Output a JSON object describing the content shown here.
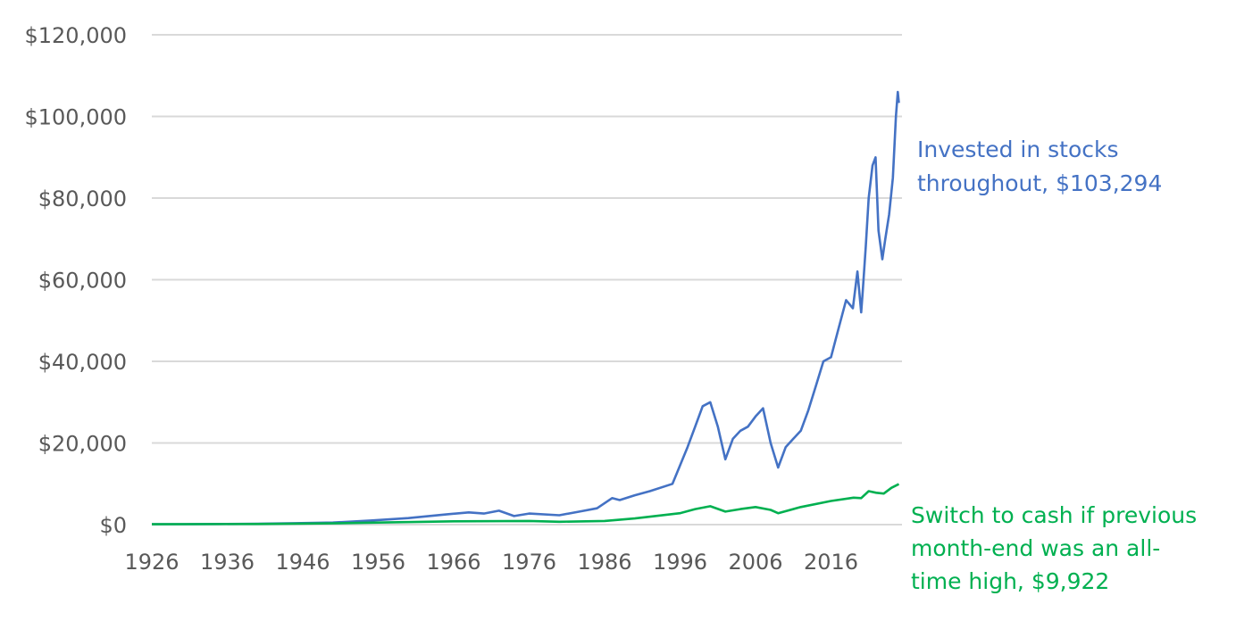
{
  "chart_data": {
    "type": "line",
    "title": "",
    "xlabel": "",
    "ylabel": "",
    "xlim": [
      1926,
      2025
    ],
    "ylim": [
      0,
      120000
    ],
    "y_ticks": [
      0,
      20000,
      40000,
      60000,
      80000,
      100000,
      120000
    ],
    "y_tick_labels": [
      "$0",
      "$20,000",
      "$40,000",
      "$60,000",
      "$80,000",
      "$100,000",
      "$120,000"
    ],
    "x_ticks": [
      1926,
      1936,
      1946,
      1956,
      1966,
      1976,
      1986,
      1996,
      2006,
      2016
    ],
    "x_tick_labels": [
      "1926",
      "1936",
      "1946",
      "1956",
      "1966",
      "1976",
      "1986",
      "1996",
      "2006",
      "2016"
    ],
    "grid": "horizontal",
    "legend": "none",
    "series": [
      {
        "key": "stocks",
        "color": "#4472C4",
        "x": [
          1926,
          1930,
          1935,
          1940,
          1945,
          1950,
          1955,
          1960,
          1965,
          1968,
          1970,
          1972,
          1974,
          1976,
          1980,
          1983,
          1985,
          1987,
          1988,
          1990,
          1992,
          1995,
          1997,
          1998,
          1999,
          2000,
          2001,
          2002,
          2003,
          2004,
          2005,
          2006,
          2007,
          2008,
          2009,
          2010,
          2011,
          2012,
          2013,
          2014,
          2015,
          2016,
          2017,
          2018,
          2018.9,
          2019.5,
          2020,
          2020.2,
          2020.6,
          2021,
          2021.5,
          2021.9,
          2022.3,
          2022.8,
          2023.2,
          2023.7,
          2024.2,
          2024.6,
          2024.85,
          2025
        ],
        "y": [
          100,
          100,
          150,
          200,
          350,
          500,
          1000,
          1600,
          2500,
          3000,
          2700,
          3400,
          2100,
          2700,
          2300,
          3300,
          4000,
          6500,
          6000,
          7200,
          8200,
          10000,
          19000,
          24000,
          29000,
          30000,
          24000,
          16000,
          21000,
          23000,
          24000,
          26500,
          28500,
          20000,
          14000,
          19000,
          21000,
          23000,
          28000,
          34000,
          40000,
          41000,
          48000,
          55000,
          53000,
          62000,
          52000,
          57000,
          68000,
          80000,
          88000,
          90000,
          72000,
          65000,
          70000,
          76000,
          85000,
          100000,
          106000,
          103294
        ]
      },
      {
        "key": "switch",
        "color": "#00B050",
        "x": [
          1926,
          1940,
          1950,
          1956,
          1966,
          1976,
          1980,
          1986,
          1990,
          1996,
          1998,
          2000,
          2002,
          2004,
          2006,
          2008,
          2009,
          2012,
          2016,
          2019,
          2020,
          2021,
          2022,
          2023,
          2024,
          2025
        ],
        "y": [
          80,
          150,
          300,
          500,
          800,
          900,
          700,
          900,
          1500,
          2800,
          3800,
          4500,
          3200,
          3800,
          4300,
          3600,
          2800,
          4300,
          5800,
          6600,
          6500,
          8200,
          7800,
          7600,
          9000,
          9922
        ]
      }
    ],
    "annotations": [
      {
        "key": "stocks",
        "lines": [
          "Invested in stocks",
          "throughout, $103,294"
        ]
      },
      {
        "key": "switch",
        "lines": [
          "Switch to cash if previous",
          "month-end was an all-",
          "time high, $9,922"
        ]
      }
    ]
  }
}
